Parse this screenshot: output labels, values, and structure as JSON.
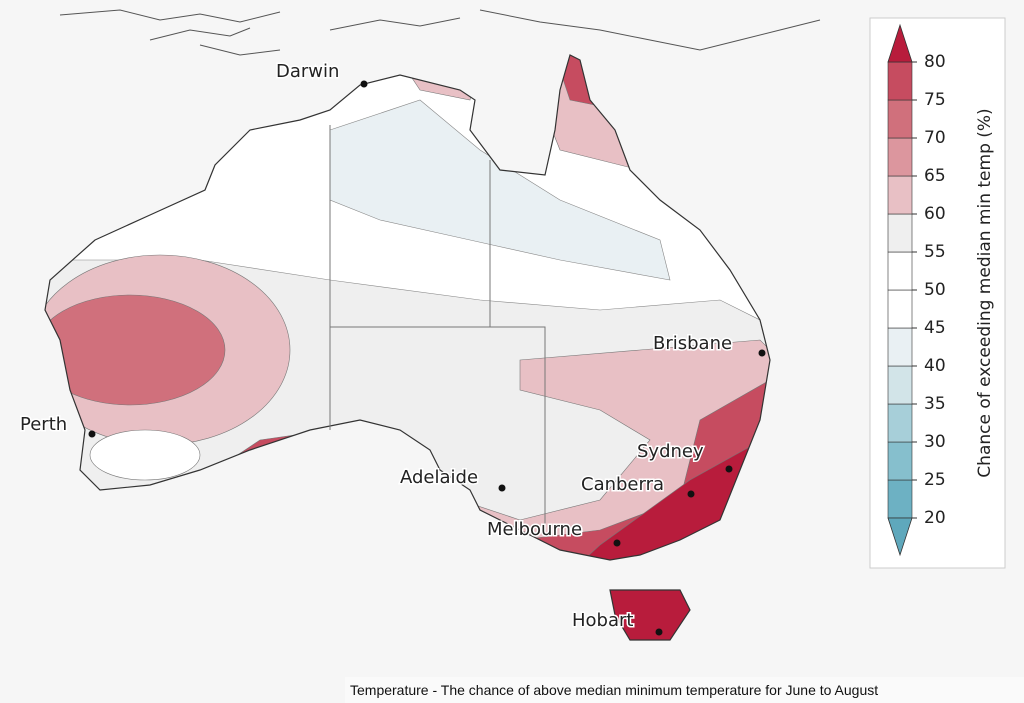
{
  "map": {
    "cities": [
      "Darwin",
      "Brisbane",
      "Perth",
      "Sydney",
      "Adelaide",
      "Canberra",
      "Melbourne",
      "Hobart"
    ],
    "caption": "Temperature - The chance of above median minimum temperature for June to August"
  },
  "legend": {
    "label": "Chance of exceeding median min temp (%)",
    "ticks": [
      20,
      25,
      30,
      35,
      40,
      45,
      50,
      55,
      60,
      65,
      70,
      75,
      80
    ],
    "colors": [
      "#5fa8bc",
      "#6db1c3",
      "#86bfcd",
      "#a7cfd9",
      "#d2e4e8",
      "#e9f0f3",
      "#ffffff",
      "#ffffff",
      "#efefef",
      "#e8c0c5",
      "#dc969e",
      "#d0707c",
      "#c64c60",
      "#b81c3c"
    ]
  }
}
